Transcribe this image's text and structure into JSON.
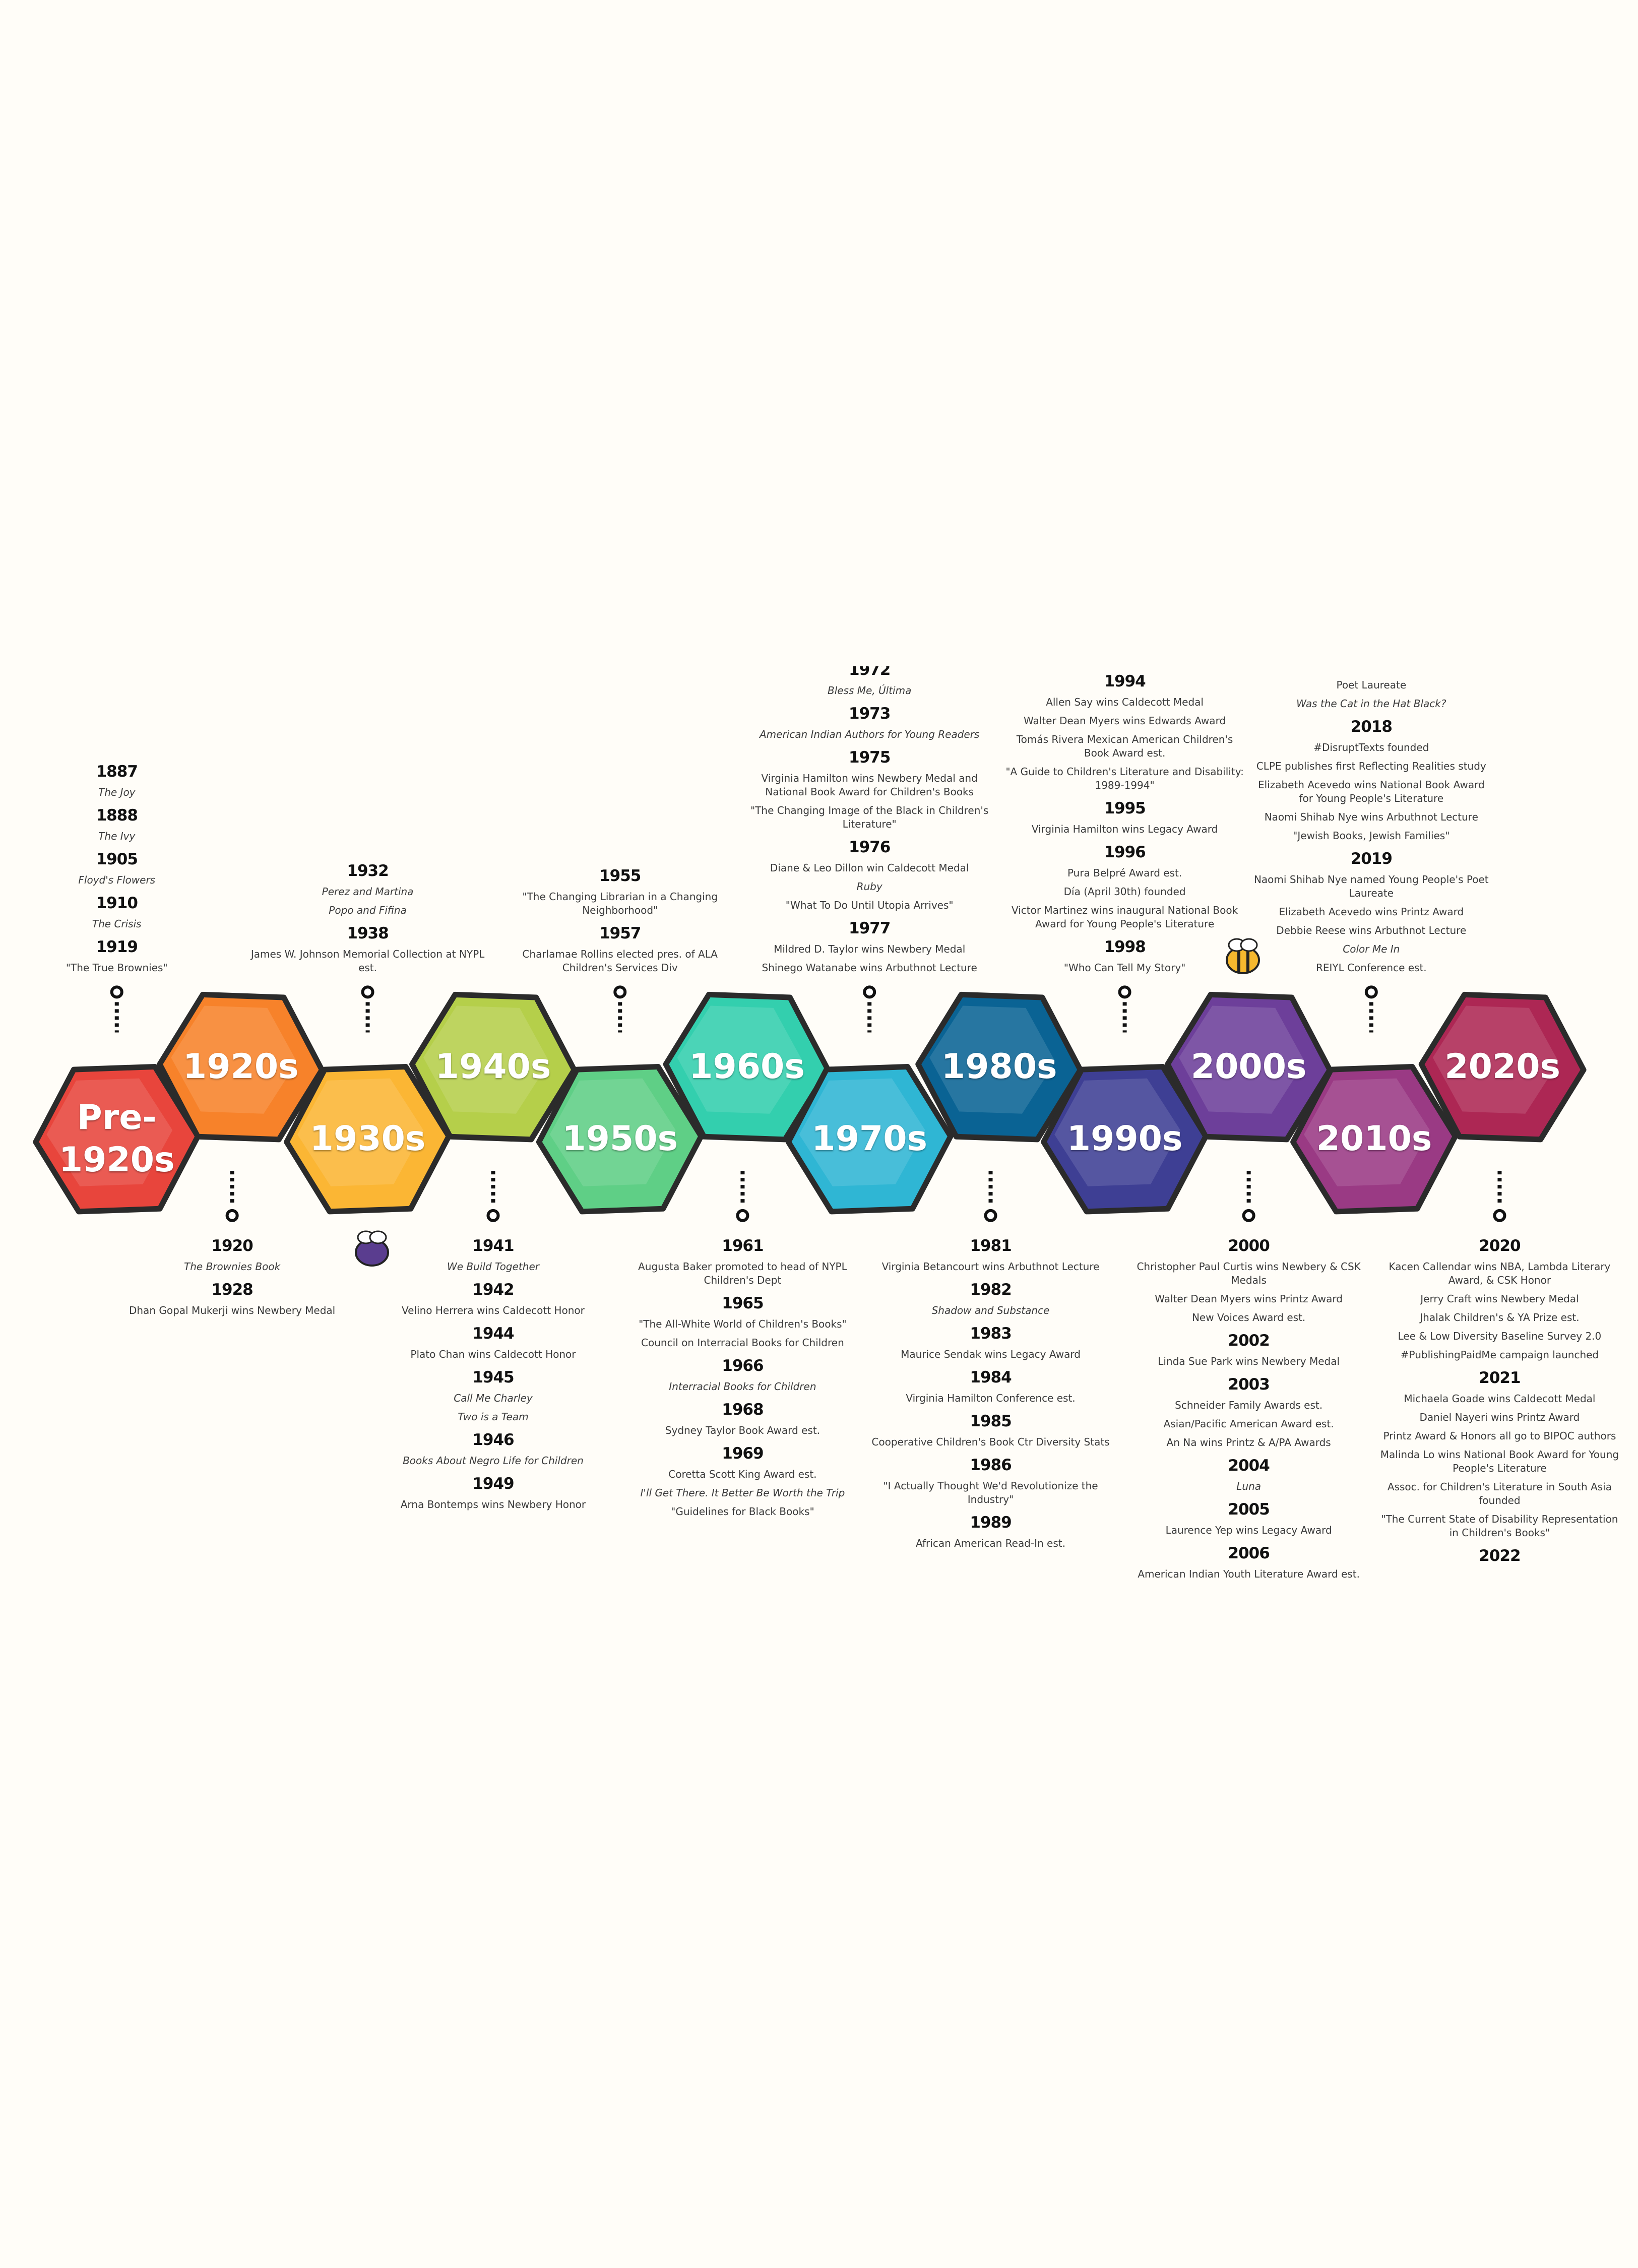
{
  "decades": [
    {
      "label": "Pre-1920s",
      "color": "#e8453c",
      "groups": [
        {
          "year": "1887",
          "items": [
            {
              "text": "The Joy",
              "italic": true
            }
          ]
        },
        {
          "year": "1888",
          "items": [
            {
              "text": "The Ivy",
              "italic": true
            }
          ]
        },
        {
          "year": "1905",
          "items": [
            {
              "text": "Floyd's Flowers",
              "italic": true
            }
          ]
        },
        {
          "year": "1910",
          "items": [
            {
              "text": "The Crisis",
              "italic": true
            }
          ]
        },
        {
          "year": "1919",
          "items": [
            {
              "text": "\"The True Brownies\""
            }
          ]
        }
      ]
    },
    {
      "label": "1920s",
      "color": "#f7822a",
      "groups": [
        {
          "year": "1920",
          "items": [
            {
              "text": "The Brownies Book",
              "italic": true
            }
          ]
        },
        {
          "year": "1928",
          "items": [
            {
              "text": "Dhan Gopal Mukerji wins Newbery Medal"
            }
          ]
        }
      ]
    },
    {
      "label": "1930s",
      "color": "#fbb634",
      "groups": [
        {
          "year": "1932",
          "items": [
            {
              "text": "Perez and Martina",
              "italic": true
            },
            {
              "text": "Popo and Fifina",
              "italic": true
            }
          ]
        },
        {
          "year": "1938",
          "items": [
            {
              "text": "James W. Johnson Memorial Collection at NYPL est."
            }
          ]
        }
      ]
    },
    {
      "label": "1940s",
      "color": "#b5cf4a",
      "groups": [
        {
          "year": "1941",
          "items": [
            {
              "text": "We Build Together",
              "italic": true
            }
          ]
        },
        {
          "year": "1942",
          "items": [
            {
              "text": "Velino Herrera wins Caldecott Honor"
            }
          ]
        },
        {
          "year": "1944",
          "items": [
            {
              "text": "Plato Chan wins Caldecott Honor"
            }
          ]
        },
        {
          "year": "1945",
          "items": [
            {
              "text": "Call Me Charley",
              "italic": true
            },
            {
              "text": "Two is a Team",
              "italic": true
            }
          ]
        },
        {
          "year": "1946",
          "items": [
            {
              "text": "Books About Negro Life for Children",
              "italic": true
            }
          ]
        },
        {
          "year": "1949",
          "items": [
            {
              "text": "Arna Bontemps wins Newbery Honor"
            }
          ]
        }
      ]
    },
    {
      "label": "1950s",
      "color": "#5fcf86",
      "groups": [
        {
          "year": "1955",
          "items": [
            {
              "text": "\"The Changing Librarian in a Changing Neighborhood\""
            }
          ]
        },
        {
          "year": "1957",
          "items": [
            {
              "text": "Charlamae Rollins elected pres. of ALA Children's Services Div"
            }
          ]
        }
      ]
    },
    {
      "label": "1960s",
      "color": "#33cfae",
      "groups": [
        {
          "year": "1961",
          "items": [
            {
              "text": "Augusta Baker promoted to head of NYPL Children's Dept"
            }
          ]
        },
        {
          "year": "1965",
          "items": [
            {
              "text": "\"The All-White World of Children's Books\""
            },
            {
              "text": "Council on Interracial Books for Children"
            }
          ]
        },
        {
          "year": "1966",
          "items": [
            {
              "text": "Interracial Books for Children",
              "italic": true
            }
          ]
        },
        {
          "year": "1968",
          "items": [
            {
              "text": "Sydney Taylor Book Award est."
            }
          ]
        },
        {
          "year": "1969",
          "items": [
            {
              "text": "Coretta Scott King Award est."
            },
            {
              "text": "I'll Get There. It Better Be Worth the Trip",
              "italic": true
            },
            {
              "text": "\"Guidelines for Black Books\""
            }
          ]
        }
      ]
    },
    {
      "label": "1970s",
      "color": "#2fb6d4",
      "groups": [
        {
          "year": "1972",
          "items": [
            {
              "text": "Bless Me, Última",
              "italic": true
            }
          ]
        },
        {
          "year": "1973",
          "items": [
            {
              "text": "American Indian Authors for Young Readers",
              "italic": true
            }
          ]
        },
        {
          "year": "1975",
          "items": [
            {
              "text": "Virginia Hamilton wins Newbery Medal and National Book Award for Children's Books"
            },
            {
              "text": "\"The Changing Image of the Black in Children's Literature\""
            }
          ]
        },
        {
          "year": "1976",
          "items": [
            {
              "text": "Diane & Leo Dillon win Caldecott Medal"
            },
            {
              "text": "Ruby",
              "italic": true
            },
            {
              "text": "\"What To Do Until Utopia Arrives\""
            }
          ]
        },
        {
          "year": "1977",
          "items": [
            {
              "text": "Mildred D. Taylor wins Newbery Medal"
            },
            {
              "text": "Shinego Watanabe wins Arbuthnot Lecture"
            }
          ]
        }
      ]
    },
    {
      "label": "1980s",
      "color": "#0a6394",
      "groups": [
        {
          "year": "1981",
          "items": [
            {
              "text": "Virginia Betancourt wins Arbuthnot Lecture"
            }
          ]
        },
        {
          "year": "1982",
          "items": [
            {
              "text": "Shadow and Substance",
              "italic": true
            }
          ]
        },
        {
          "year": "1983",
          "items": [
            {
              "text": "Maurice Sendak wins Legacy Award"
            }
          ]
        },
        {
          "year": "1984",
          "items": [
            {
              "text": "Virginia Hamilton Conference est."
            }
          ]
        },
        {
          "year": "1985",
          "items": [
            {
              "text": "Cooperative Children's Book Ctr Diversity Stats"
            }
          ]
        },
        {
          "year": "1986",
          "items": [
            {
              "text": "\"I Actually Thought We'd Revolutionize the Industry\""
            }
          ]
        },
        {
          "year": "1989",
          "items": [
            {
              "text": "African American Read-In est."
            }
          ]
        }
      ]
    },
    {
      "label": "1990s",
      "color": "#3e3f94",
      "groups": [
        {
          "year": "1994",
          "items": [
            {
              "text": "Allen Say wins Caldecott Medal"
            },
            {
              "text": "Walter Dean Myers wins Edwards Award"
            },
            {
              "text": "Tomás Rivera Mexican American Children's Book Award est."
            },
            {
              "text": "\"A Guide to Children's Literature and Disability: 1989-1994\""
            }
          ]
        },
        {
          "year": "1995",
          "items": [
            {
              "text": "Virginia Hamilton wins Legacy Award"
            }
          ]
        },
        {
          "year": "1996",
          "items": [
            {
              "text": "Pura Belpré Award est."
            },
            {
              "text": "Día (April 30th) founded"
            },
            {
              "text": "Victor Martinez wins inaugural National Book Award for Young People's Literature"
            }
          ]
        },
        {
          "year": "1998",
          "items": [
            {
              "text": "\"Who Can Tell My Story\""
            }
          ]
        }
      ]
    },
    {
      "label": "2000s",
      "color": "#6d3f9a",
      "groups": [
        {
          "year": "2000",
          "items": [
            {
              "text": "Christopher Paul Curtis wins Newbery & CSK Medals"
            },
            {
              "text": "Walter Dean Myers wins Printz Award"
            },
            {
              "text": "New Voices Award est."
            }
          ]
        },
        {
          "year": "2002",
          "items": [
            {
              "text": "Linda Sue Park wins Newbery Medal"
            }
          ]
        },
        {
          "year": "2003",
          "items": [
            {
              "text": "Schneider Family Awards est."
            },
            {
              "text": "Asian/Pacific American Award est."
            },
            {
              "text": "An Na wins Printz & A/PA Awards"
            }
          ]
        },
        {
          "year": "2004",
          "items": [
            {
              "text": "Luna",
              "italic": true
            }
          ]
        },
        {
          "year": "2005",
          "items": [
            {
              "text": "Laurence Yep wins Legacy Award"
            }
          ]
        },
        {
          "year": "2006",
          "items": [
            {
              "text": "American Indian Youth Literature Award est."
            }
          ]
        }
      ]
    },
    {
      "label": "2010s",
      "color": "#9a3a84",
      "groups": [
        {
          "items": [
            {
              "text": "Poet Laureate"
            },
            {
              "text": "Was the Cat in the Hat Black?",
              "italic": true
            }
          ]
        },
        {
          "year": "2018",
          "items": [
            {
              "text": "#DisruptTexts founded"
            },
            {
              "text": "CLPE publishes first Reflecting Realities study"
            },
            {
              "text": "Elizabeth Acevedo wins National Book Award for Young People's Literature"
            },
            {
              "text": "Naomi Shihab Nye wins Arbuthnot Lecture"
            },
            {
              "text": "\"Jewish Books, Jewish Families\""
            }
          ]
        },
        {
          "year": "2019",
          "items": [
            {
              "text": "Naomi Shihab Nye named Young People's Poet Laureate"
            },
            {
              "text": "Elizabeth Acevedo wins Printz Award"
            },
            {
              "text": "Debbie Reese wins Arbuthnot Lecture"
            },
            {
              "text": "Color Me In",
              "italic": true
            },
            {
              "text": "REIYL Conference est."
            }
          ]
        }
      ]
    },
    {
      "label": "2020s",
      "color": "#ad2754",
      "groups": [
        {
          "year": "2020",
          "items": [
            {
              "text": "Kacen Callendar wins NBA, Lambda Literary Award, & CSK Honor"
            },
            {
              "text": "Jerry Craft wins Newbery Medal"
            },
            {
              "text": "Jhalak Children's & YA Prize est."
            },
            {
              "text": "Lee & Low Diversity Baseline Survey 2.0"
            },
            {
              "text": "#PublishingPaidMe campaign launched"
            }
          ]
        },
        {
          "year": "2021",
          "items": [
            {
              "text": "Michaela Goade wins Caldecott Medal"
            },
            {
              "text": "Daniel Nayeri wins Printz Award"
            },
            {
              "text": "Printz Award & Honors all go to BIPOC authors"
            },
            {
              "text": "Malinda Lo wins National Book Award for Young People's Literature"
            },
            {
              "text": "Assoc. for Children's Literature in South Asia founded"
            },
            {
              "text": "\"The Current State of Disability Representation in Children's Books\""
            }
          ]
        },
        {
          "year": "2022",
          "items": []
        }
      ]
    }
  ]
}
